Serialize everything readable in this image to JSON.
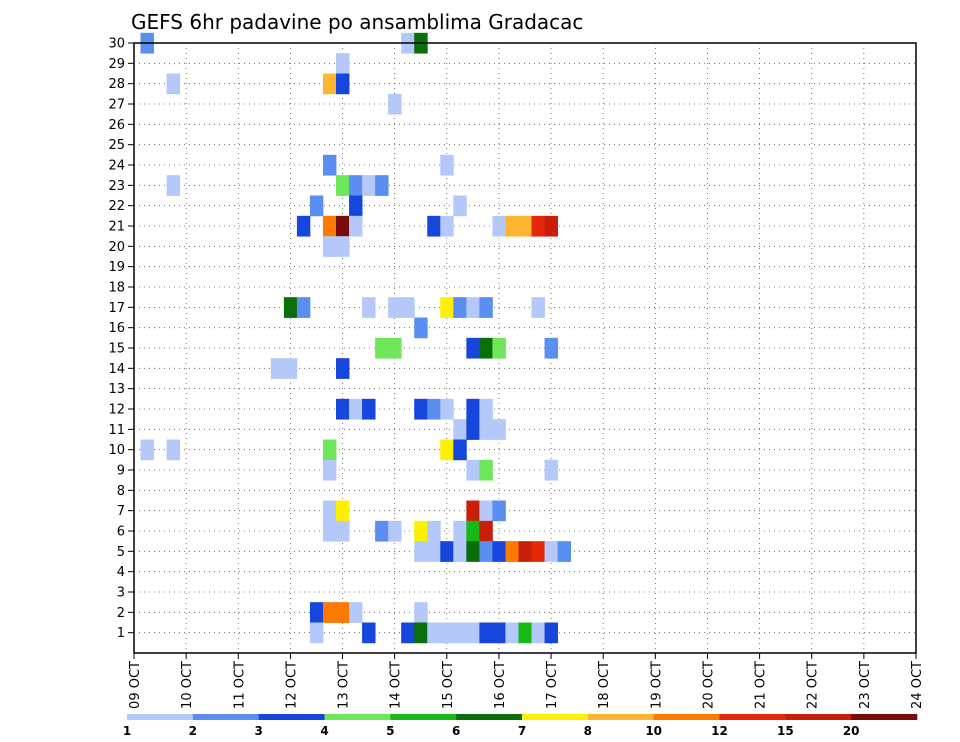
{
  "chart_data": {
    "type": "heatmap",
    "title": "GEFS 6hr padavine po ansamblima Gradacac",
    "xlabel": "",
    "ylabel": "",
    "x_tick_labels": [
      "09 OCT",
      "10 OCT",
      "11 OCT",
      "12 OCT",
      "13 OCT",
      "14 OCT",
      "15 OCT",
      "16 OCT",
      "17 OCT",
      "18 OCT",
      "19 OCT",
      "20 OCT",
      "21 OCT",
      "22 OCT",
      "23 OCT",
      "24 OCT"
    ],
    "y_tick_labels": [
      "1",
      "2",
      "3",
      "4",
      "5",
      "6",
      "7",
      "8",
      "9",
      "10",
      "11",
      "12",
      "13",
      "14",
      "15",
      "16",
      "17",
      "18",
      "19",
      "20",
      "21",
      "22",
      "23",
      "24",
      "25",
      "26",
      "27",
      "28",
      "29",
      "30"
    ],
    "xlim": [
      0,
      60
    ],
    "ylim": [
      0,
      30
    ],
    "grid": true,
    "colorbar": {
      "levels": [
        1,
        2,
        3,
        4,
        5,
        6,
        7,
        8,
        10,
        12,
        15,
        20
      ],
      "colors": [
        "#b4c8fa",
        "#5a8ef0",
        "#1746dc",
        "#6ee65a",
        "#18b818",
        "#0a6e0a",
        "#fff000",
        "#ffb432",
        "#ff7800",
        "#e6280a",
        "#c81e0a",
        "#780a0a"
      ],
      "labels": [
        "1",
        "2",
        "3",
        "4",
        "5",
        "6",
        "7",
        "8",
        "10",
        "12",
        "15",
        "20"
      ]
    },
    "cells": [
      [
        1,
        30,
        1
      ],
      [
        21,
        30,
        0
      ],
      [
        22,
        30,
        5
      ],
      [
        16,
        29,
        0
      ],
      [
        3,
        28,
        0
      ],
      [
        15,
        28,
        7
      ],
      [
        16,
        28,
        2
      ],
      [
        20,
        27,
        0
      ],
      [
        15,
        24,
        1
      ],
      [
        24,
        24,
        0
      ],
      [
        3,
        23,
        0
      ],
      [
        16,
        23,
        3
      ],
      [
        17,
        23,
        1
      ],
      [
        18,
        23,
        0
      ],
      [
        19,
        23,
        1
      ],
      [
        14,
        22,
        1
      ],
      [
        17,
        22,
        2
      ],
      [
        25,
        22,
        0
      ],
      [
        13,
        21,
        2
      ],
      [
        15,
        21,
        8
      ],
      [
        16,
        21,
        11
      ],
      [
        17,
        21,
        0
      ],
      [
        23,
        21,
        2
      ],
      [
        24,
        21,
        0
      ],
      [
        28,
        21,
        0
      ],
      [
        29,
        21,
        7
      ],
      [
        30,
        21,
        7
      ],
      [
        31,
        21,
        9
      ],
      [
        32,
        21,
        10
      ],
      [
        15,
        20,
        0
      ],
      [
        16,
        20,
        0
      ],
      [
        12,
        17,
        5
      ],
      [
        13,
        17,
        1
      ],
      [
        18,
        17,
        0
      ],
      [
        20,
        17,
        0
      ],
      [
        21,
        17,
        0
      ],
      [
        24,
        17,
        6
      ],
      [
        25,
        17,
        1
      ],
      [
        26,
        17,
        0
      ],
      [
        27,
        17,
        1
      ],
      [
        31,
        17,
        0
      ],
      [
        22,
        16,
        1
      ],
      [
        19,
        15,
        3
      ],
      [
        20,
        15,
        3
      ],
      [
        26,
        15,
        2
      ],
      [
        27,
        15,
        5
      ],
      [
        28,
        15,
        3
      ],
      [
        32,
        15,
        1
      ],
      [
        11,
        14,
        0
      ],
      [
        12,
        14,
        0
      ],
      [
        16,
        14,
        2
      ],
      [
        16,
        12,
        2
      ],
      [
        17,
        12,
        0
      ],
      [
        18,
        12,
        2
      ],
      [
        22,
        12,
        2
      ],
      [
        23,
        12,
        1
      ],
      [
        24,
        12,
        0
      ],
      [
        26,
        12,
        2
      ],
      [
        27,
        12,
        0
      ],
      [
        25,
        11,
        0
      ],
      [
        26,
        11,
        2
      ],
      [
        27,
        11,
        0
      ],
      [
        28,
        11,
        0
      ],
      [
        1,
        10,
        0
      ],
      [
        3,
        10,
        0
      ],
      [
        15,
        10,
        3
      ],
      [
        24,
        10,
        6
      ],
      [
        25,
        10,
        2
      ],
      [
        15,
        9,
        0
      ],
      [
        26,
        9,
        0
      ],
      [
        27,
        9,
        3
      ],
      [
        32,
        9,
        0
      ],
      [
        15,
        7,
        0
      ],
      [
        16,
        7,
        6
      ],
      [
        26,
        7,
        10
      ],
      [
        27,
        7,
        0
      ],
      [
        28,
        7,
        1
      ],
      [
        15,
        6,
        0
      ],
      [
        16,
        6,
        0
      ],
      [
        19,
        6,
        1
      ],
      [
        20,
        6,
        0
      ],
      [
        22,
        6,
        6
      ],
      [
        23,
        6,
        0
      ],
      [
        25,
        6,
        0
      ],
      [
        26,
        6,
        4
      ],
      [
        27,
        6,
        10
      ],
      [
        22,
        5,
        0
      ],
      [
        23,
        5,
        0
      ],
      [
        24,
        5,
        2
      ],
      [
        25,
        5,
        0
      ],
      [
        26,
        5,
        5
      ],
      [
        27,
        5,
        1
      ],
      [
        28,
        5,
        2
      ],
      [
        29,
        5,
        8
      ],
      [
        30,
        5,
        10
      ],
      [
        31,
        5,
        9
      ],
      [
        32,
        5,
        0
      ],
      [
        33,
        5,
        1
      ],
      [
        14,
        2,
        2
      ],
      [
        15,
        2,
        8
      ],
      [
        16,
        2,
        8
      ],
      [
        17,
        2,
        0
      ],
      [
        22,
        2,
        0
      ],
      [
        14,
        1,
        0
      ],
      [
        18,
        1,
        2
      ],
      [
        21,
        1,
        2
      ],
      [
        22,
        1,
        5
      ],
      [
        23,
        1,
        0
      ],
      [
        24,
        1,
        0
      ],
      [
        25,
        1,
        0
      ],
      [
        26,
        1,
        0
      ],
      [
        27,
        1,
        2
      ],
      [
        28,
        1,
        2
      ],
      [
        29,
        1,
        0
      ],
      [
        30,
        1,
        4
      ],
      [
        31,
        1,
        0
      ],
      [
        32,
        1,
        2
      ]
    ]
  }
}
